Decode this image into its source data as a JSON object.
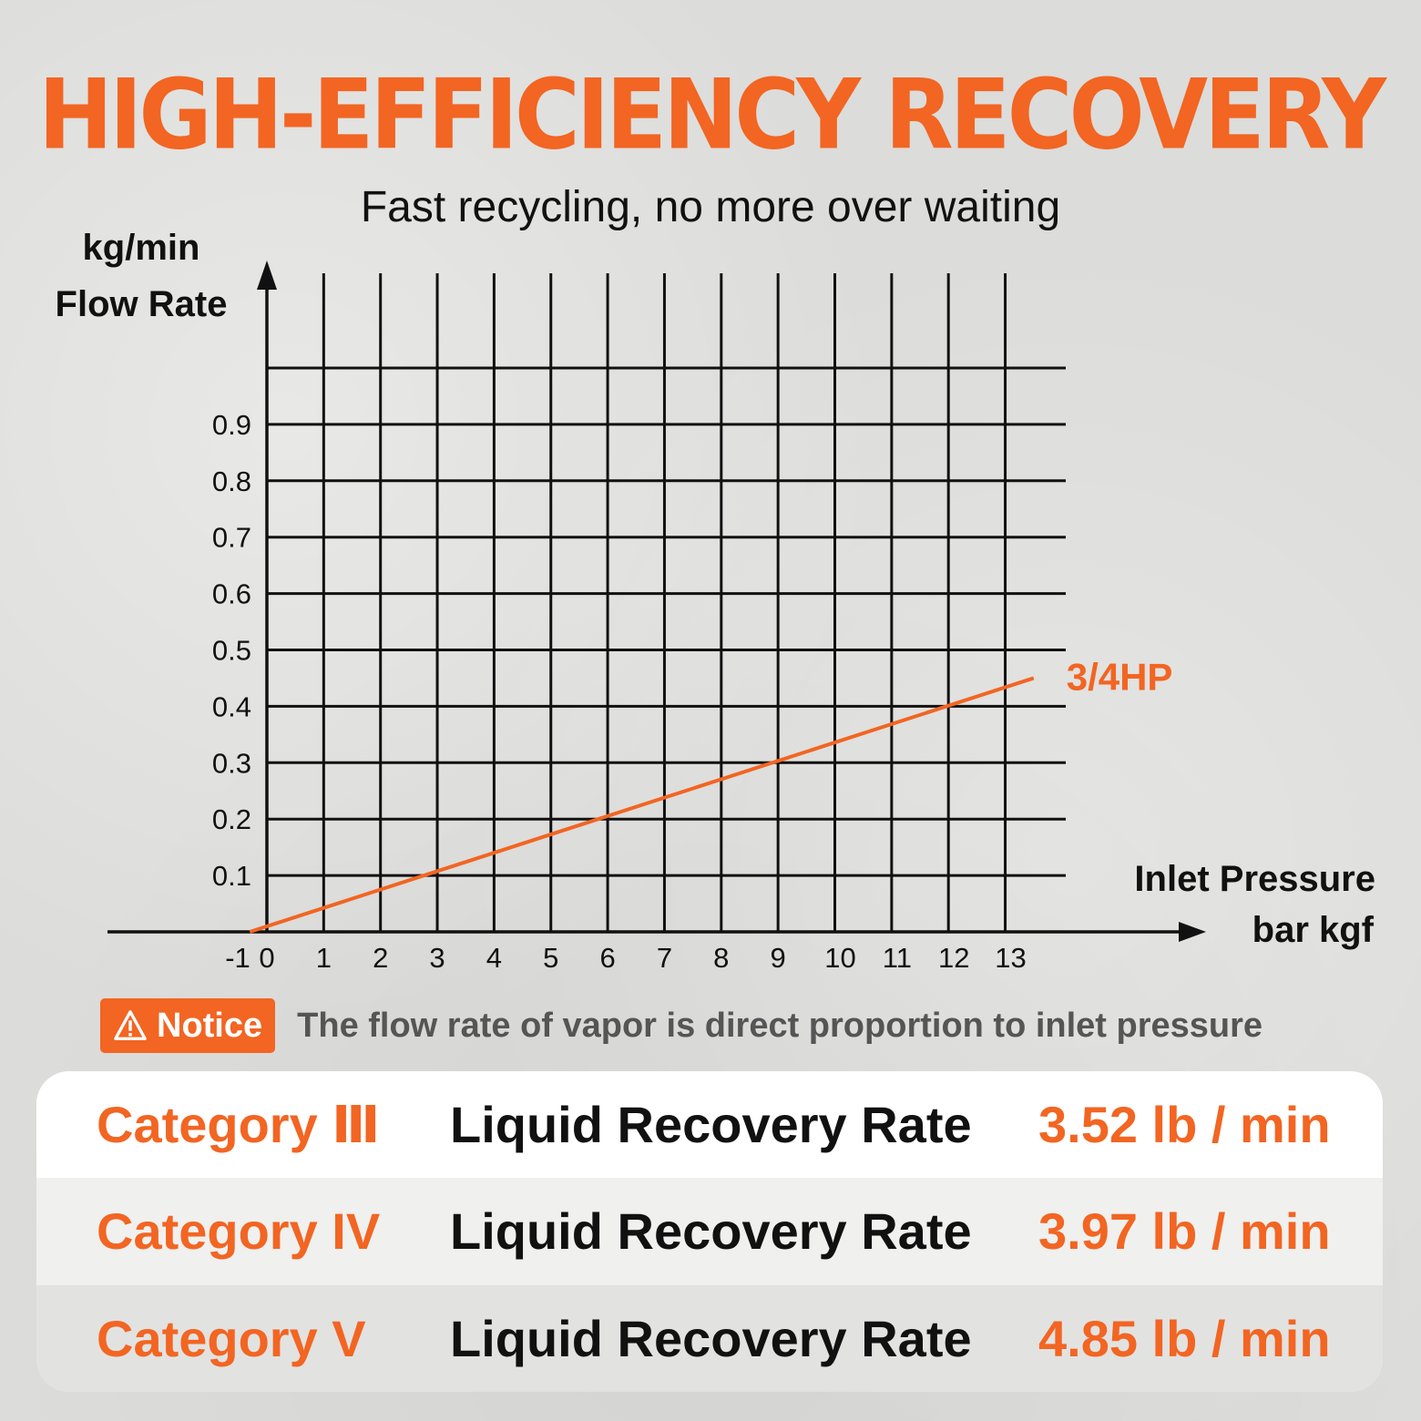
{
  "header": {
    "title": "HIGH-EFFICIENCY RECOVERY",
    "subtitle": "Fast recycling, no more over waiting"
  },
  "chart_data": {
    "type": "line",
    "ylabel_unit": "kg/min",
    "ylabel": "Flow Rate",
    "xlabel": "Inlet Pressure",
    "xlabel_unit": "bar kgf",
    "x_ticks": [
      "-1",
      "0",
      "1",
      "2",
      "3",
      "4",
      "5",
      "6",
      "7",
      "8",
      "9",
      "10",
      "11",
      "12",
      "13"
    ],
    "y_ticks": [
      "0.1",
      "0.2",
      "0.3",
      "0.4",
      "0.5",
      "0.6",
      "0.7",
      "0.8",
      "0.9"
    ],
    "xlim": [
      -1,
      13
    ],
    "ylim": [
      0,
      1
    ],
    "grid": true,
    "series": [
      {
        "name": "3/4HP",
        "color": "#f26522",
        "x": [
          -0.3,
          13.5
        ],
        "y": [
          0,
          0.45
        ]
      }
    ]
  },
  "notice": {
    "label": "Notice",
    "text": "The flow rate of vapor is direct proportion to inlet pressure"
  },
  "table": {
    "rows": [
      {
        "category": "Category Ⅲ",
        "metric": "Liquid Recovery Rate",
        "value": "3.52 lb / min"
      },
      {
        "category": "Category IV",
        "metric": "Liquid Recovery Rate",
        "value": "3.97 lb / min"
      },
      {
        "category": "Category V",
        "metric": "Liquid Recovery Rate",
        "value": "4.85 lb / min"
      }
    ]
  },
  "colors": {
    "accent": "#f26522",
    "text": "#111111"
  }
}
